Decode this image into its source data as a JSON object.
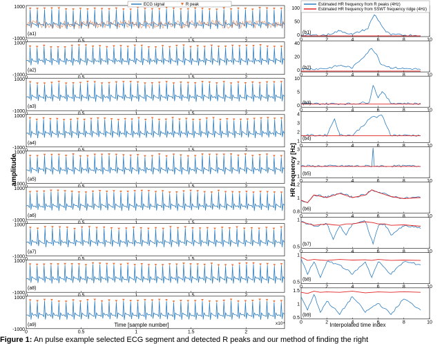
{
  "caption": {
    "label": "Figure 1:",
    "text": "An pulse example selected ECG segment and detected R peaks and our method of finding the right"
  },
  "legend_left": {
    "ecg_label": "ECG signal",
    "rpeak_label": "R peak"
  },
  "legend_right": {
    "line1": "Estimated HR frequency from R peaks (4Hz)",
    "line2": "Estimated HR frequency from SSWT frequency ridge (4Hz)"
  },
  "colors": {
    "ecg": "#2b7bbf",
    "rpeak": "#e8733a",
    "hr_rpeak": "#2b7bbf",
    "hr_sswt": "#e02020"
  },
  "chart_data": [
    {
      "type": "line",
      "title": "",
      "xlabel": "Time [sample number]",
      "ylabel": "amplitude",
      "x_tick_labels": [
        "0",
        "0.5",
        "1",
        "1.5",
        "2"
      ],
      "x_multiplier": "x10⁴",
      "y_tick_labels": [
        "1000",
        "-1000"
      ],
      "xlim": [
        0,
        25000
      ],
      "ylim": [
        -1000,
        1000
      ],
      "series": [
        {
          "name": "ECG signal",
          "color": "#2b7bbf"
        },
        {
          "name": "R peak",
          "color": "#e8733a",
          "marker": "v"
        }
      ],
      "panels": [
        "(a1)",
        "(a2)",
        "(a3)",
        "(a4)",
        "(a5)",
        "(a6)",
        "(a7)",
        "(a8)",
        "(a9)"
      ],
      "panel_beats": [
        36,
        37,
        36,
        38,
        36,
        37,
        35,
        37,
        36
      ]
    },
    {
      "type": "line",
      "title": "",
      "xlabel": "Interpolated time index",
      "ylabel": "HR frequency [Hz]",
      "x_tick_labels": [
        "0",
        "2",
        "4",
        "6",
        "8",
        "10"
      ],
      "xlim": [
        0,
        10
      ],
      "series": [
        {
          "name": "Estimated HR frequency from R peaks (4Hz)",
          "color": "#2b7bbf"
        },
        {
          "name": "Estimated HR frequency from SSWT frequency ridge (4Hz)",
          "color": "#e02020"
        }
      ],
      "panels": [
        {
          "label": "(b1)",
          "ylim": [
            0,
            100
          ],
          "y_tick_labels": [
            "100",
            "50",
            "0"
          ],
          "x": [
            0,
            2,
            3,
            4,
            5.2,
            5.5,
            5.7,
            5.9,
            6.2,
            6.6,
            7,
            8,
            9.3
          ],
          "rpeak_hr": [
            3,
            4,
            18,
            6,
            25,
            55,
            70,
            60,
            40,
            15,
            5,
            4,
            3
          ],
          "sswt_hr": [
            1,
            1,
            1,
            1,
            1,
            1,
            1,
            1,
            1,
            1,
            1,
            1,
            1
          ]
        },
        {
          "label": "(b2)",
          "ylim": [
            0,
            40
          ],
          "y_tick_labels": [
            "40",
            "20",
            "0"
          ],
          "x": [
            0,
            2,
            3,
            4,
            5.5,
            5.9,
            6.2,
            7,
            8,
            9.3
          ],
          "rpeak_hr": [
            3,
            4,
            8,
            5,
            30,
            22,
            10,
            5,
            4,
            3
          ],
          "sswt_hr": [
            1,
            1,
            1,
            1,
            1,
            1,
            1,
            1,
            1,
            1
          ]
        },
        {
          "label": "(b3)",
          "ylim": [
            0,
            10
          ],
          "y_tick_labels": [
            "10",
            "5",
            "0"
          ],
          "x": [
            0,
            2,
            4,
            5.3,
            5.6,
            6.0,
            6.3,
            7,
            9.3
          ],
          "rpeak_hr": [
            1,
            1,
            1,
            1.5,
            7,
            3,
            5,
            1.2,
            1
          ],
          "sswt_hr": [
            1,
            1,
            1,
            1,
            1,
            1,
            1,
            1,
            1
          ]
        },
        {
          "label": "(b4)",
          "ylim": [
            0,
            5
          ],
          "y_tick_labels": [
            "4",
            "3",
            "2",
            "1"
          ],
          "x": [
            0,
            2,
            2.6,
            3,
            4,
            5.6,
            5.9,
            6.3,
            7,
            9.3
          ],
          "rpeak_hr": [
            1.1,
            1.1,
            3.8,
            1.2,
            1.1,
            4.2,
            4.0,
            4.3,
            1.1,
            1.1
          ],
          "sswt_hr": [
            1.1,
            1.1,
            1.1,
            1.1,
            1.1,
            1.1,
            1.1,
            1.1,
            1.1,
            1.1
          ]
        },
        {
          "label": "(b5)",
          "ylim": [
            0,
            3
          ],
          "y_tick_labels": [
            "3",
            "2",
            "1"
          ],
          "x": [
            0,
            2,
            4,
            5.5,
            5.6,
            5.7,
            7,
            9.3
          ],
          "rpeak_hr": [
            1.1,
            1.1,
            1.1,
            1.1,
            2.9,
            1.1,
            1.1,
            1.1
          ],
          "sswt_hr": [
            1.1,
            1.1,
            1.1,
            1.1,
            1.1,
            1.1,
            1.1,
            1.1
          ]
        },
        {
          "label": "(b6)",
          "ylim": [
            0.7,
            1.3
          ],
          "y_tick_labels": [
            "1.2",
            "1",
            "0.8"
          ],
          "x": [
            0,
            0.5,
            1,
            2,
            3,
            4,
            5,
            5.5,
            6,
            7,
            8,
            9.3
          ],
          "rpeak_hr": [
            0.95,
            0.9,
            1.05,
            1.0,
            1.08,
            1.0,
            1.05,
            1.15,
            1.1,
            1.02,
            0.98,
            1.0
          ],
          "sswt_hr": [
            0.95,
            0.9,
            1.05,
            1.0,
            1.08,
            1.0,
            1.05,
            1.15,
            1.1,
            1.02,
            0.98,
            1.0
          ]
        },
        {
          "label": "(b7)",
          "ylim": [
            0.4,
            1.1
          ],
          "y_tick_labels": [
            "1",
            "0.5"
          ],
          "x": [
            0,
            1,
            2,
            2.5,
            3,
            3.5,
            4,
            5,
            5.6,
            6,
            6.5,
            7,
            8,
            9.3
          ],
          "rpeak_hr": [
            1.0,
            0.9,
            0.95,
            0.6,
            0.9,
            0.7,
            0.95,
            1.0,
            0.5,
            0.9,
            0.95,
            0.7,
            0.9,
            0.85
          ],
          "sswt_hr": [
            1.0,
            0.92,
            0.95,
            0.93,
            0.92,
            0.95,
            0.95,
            1.0,
            0.98,
            0.95,
            0.95,
            0.92,
            0.93,
            0.9
          ]
        },
        {
          "label": "(b8)",
          "ylim": [
            0.3,
            1.3
          ],
          "y_tick_labels": [
            "1",
            "0.5"
          ],
          "x": [
            0,
            0.5,
            1,
            1.5,
            2,
            3,
            4,
            5,
            5.5,
            6,
            7,
            8,
            9.3
          ],
          "rpeak_hr": [
            1.1,
            0.6,
            1.0,
            0.5,
            1.0,
            0.9,
            0.6,
            1.0,
            0.5,
            1.0,
            0.6,
            1.0,
            0.9
          ],
          "sswt_hr": [
            1.15,
            1.05,
            1.08,
            1.06,
            1.05,
            1.08,
            1.06,
            1.07,
            1.05,
            1.08,
            1.05,
            1.06,
            1.05
          ]
        },
        {
          "label": "(b9)",
          "ylim": [
            0.2,
            1.6
          ],
          "y_tick_labels": [
            "1.5",
            "1",
            "0.5"
          ],
          "x": [
            0,
            0.5,
            1,
            1.5,
            2,
            3,
            4,
            5,
            6,
            7,
            8,
            9.3
          ],
          "rpeak_hr": [
            1.2,
            0.6,
            1.3,
            0.5,
            1.0,
            0.4,
            1.2,
            0.5,
            0.9,
            0.4,
            1.1,
            0.6
          ],
          "sswt_hr": [
            1.4,
            1.35,
            1.45,
            1.4,
            1.42,
            1.4,
            1.45,
            1.38,
            1.42,
            1.4,
            1.43,
            1.4
          ]
        }
      ]
    }
  ]
}
